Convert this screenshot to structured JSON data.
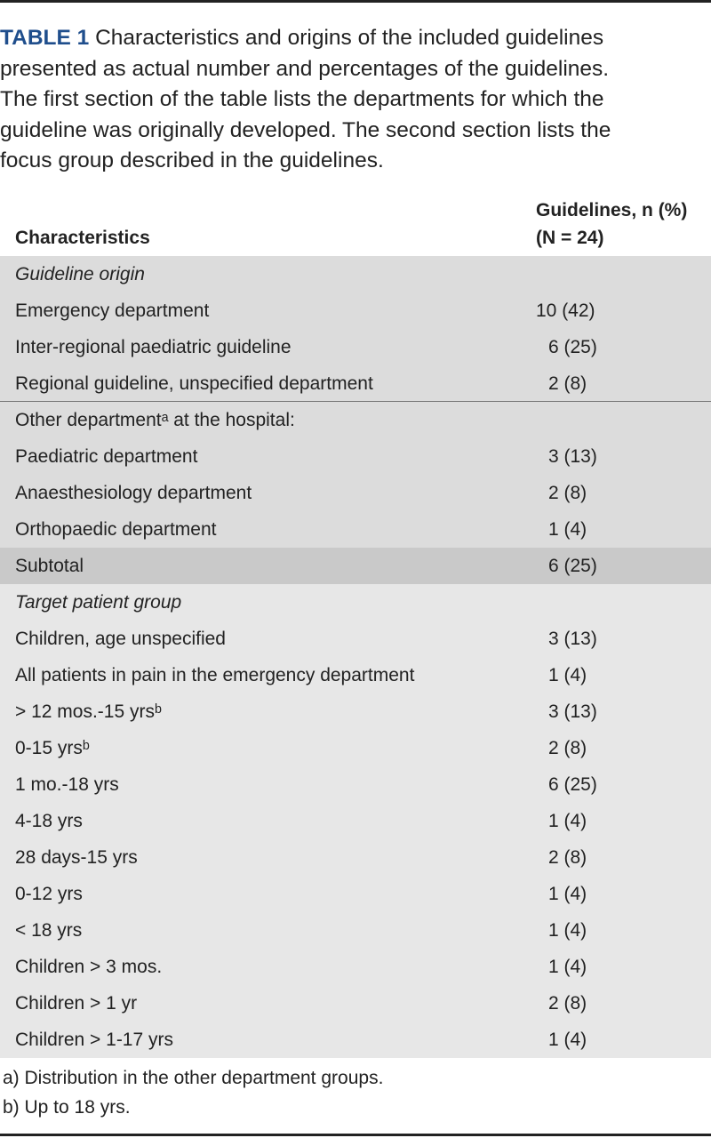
{
  "caption": {
    "label": "TABLE 1",
    "lines": [
      "Characteristics and origins of the included guidelines",
      "presented as actual number and percentages of the guidelines.",
      "The first section of the table lists the departments for which the",
      "guideline was originally developed. The second section lists the",
      "focus group described in the guidelines."
    ]
  },
  "table": {
    "header": {
      "characteristics": "Characteristics",
      "guidelines": "Guidelines, n (%)",
      "n": "(N = 24)"
    },
    "rows": [
      {
        "label": "Guideline origin"
      },
      {
        "label": "Emergency department",
        "value": "10 (42)"
      },
      {
        "label": "Inter-regional paediatric guideline",
        "value": "6 (25)"
      },
      {
        "label": "Regional guideline, unspecified department",
        "value": "2 (8)"
      },
      {
        "label": "Other departmentᵃ at the hospital:"
      },
      {
        "label": "Paediatric department",
        "value": "3 (13)"
      },
      {
        "label": "Anaesthesiology department",
        "value": "2 (8)"
      },
      {
        "label": "Orthopaedic department",
        "value": "1 (4)"
      },
      {
        "label": "Subtotal",
        "value": "6 (25)"
      },
      {
        "label": "Target patient group"
      },
      {
        "label": "Children, age unspecified",
        "value": "3 (13)"
      },
      {
        "label": "All patients in pain in the emergency department",
        "value": "1 (4)"
      },
      {
        "label": "> 12 mos.-15 yrsᵇ",
        "value": "3 (13)"
      },
      {
        "label": "0-15 yrsᵇ",
        "value": "2 (8)"
      },
      {
        "label": "1 mo.-18 yrs",
        "value": "6 (25)"
      },
      {
        "label": "4-18 yrs",
        "value": "1 (4)"
      },
      {
        "label": "28 days-15 yrs",
        "value": "2 (8)"
      },
      {
        "label": "0-12 yrs",
        "value": "1 (4)"
      },
      {
        "label": "< 18 yrs",
        "value": "1 (4)"
      },
      {
        "label": "Children > 3 mos.",
        "value": "1 (4)"
      },
      {
        "label": "Children > 1 yr",
        "value": "2 (8)"
      },
      {
        "label": "Children > 1-17 yrs",
        "value": "1 (4)"
      }
    ]
  },
  "footnotes": [
    "a) Distribution in the other department groups.",
    "b) Up to 18 yrs."
  ]
}
